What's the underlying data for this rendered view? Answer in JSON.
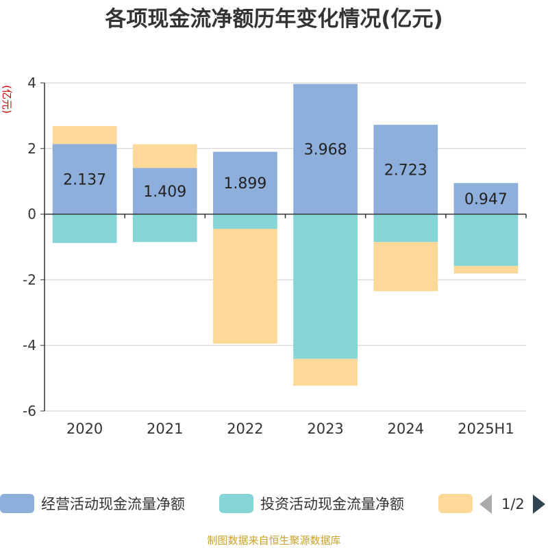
{
  "chart_data": {
    "type": "bar",
    "stacked": true,
    "title": "各项现金流净额历年变化情况(亿元)",
    "ylabel": "(亿元)",
    "xlabel": "",
    "categories": [
      "2020",
      "2021",
      "2022",
      "2023",
      "2024",
      "2025H1"
    ],
    "ylim": [
      -6,
      4
    ],
    "yticks": [
      "4",
      "2",
      "0",
      "-2",
      "-4",
      "-6"
    ],
    "yticks_values": [
      4,
      2,
      0,
      -2,
      -4,
      -6
    ],
    "grid": true,
    "series": [
      {
        "name": "经营活动现金流量净额",
        "color": "#8eaedb",
        "values": [
          2.137,
          1.409,
          1.899,
          3.968,
          2.723,
          0.947
        ],
        "labels": [
          "2.137",
          "1.409",
          "1.899",
          "3.968",
          "2.723",
          "0.947"
        ]
      },
      {
        "name": "投资活动现金流量净额",
        "color": "#85d4d6",
        "values": [
          -0.88,
          -0.85,
          -0.45,
          -4.41,
          -0.85,
          -1.58
        ]
      },
      {
        "name": "",
        "color": "#fdd999",
        "values": [
          0.55,
          0.72,
          -3.5,
          -0.82,
          -1.5,
          -0.23
        ]
      }
    ]
  },
  "legend": {
    "pager_text": "1/2"
  },
  "source": "制图数据来自恒生聚源数据库"
}
